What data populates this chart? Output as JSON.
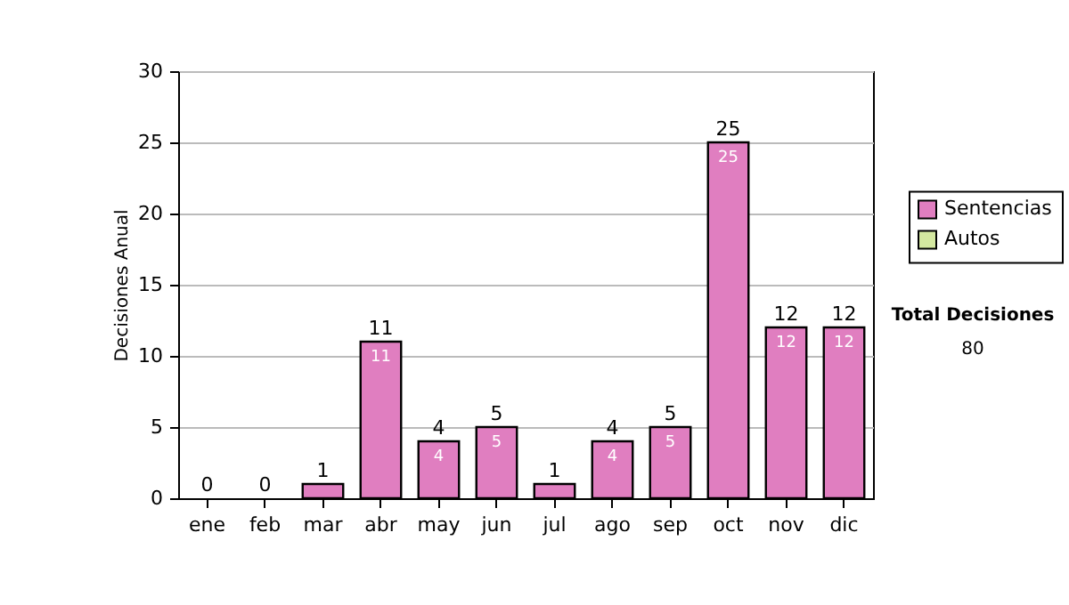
{
  "chart_data": {
    "type": "bar",
    "stacked": true,
    "ylabel": "Decisiones Anual",
    "categories": [
      "ene",
      "feb",
      "mar",
      "abr",
      "may",
      "jun",
      "jul",
      "ago",
      "sep",
      "oct",
      "nov",
      "dic"
    ],
    "series": [
      {
        "name": "Sentencias",
        "color": "#e07ec0",
        "values": [
          0,
          0,
          1,
          11,
          4,
          5,
          1,
          4,
          5,
          25,
          12,
          12
        ],
        "value_labels": [
          null,
          null,
          null,
          "11",
          "4",
          "5",
          null,
          "4",
          "5",
          "25",
          "12",
          "12"
        ]
      },
      {
        "name": "Autos",
        "color": "#d4e8a0",
        "values": [
          0,
          0,
          0,
          0,
          0,
          0,
          0,
          0,
          0,
          0,
          0,
          0
        ]
      }
    ],
    "totals": [
      "0",
      "0",
      "1",
      "11",
      "4",
      "5",
      "1",
      "4",
      "5",
      "25",
      "12",
      "12"
    ],
    "ylim": [
      0,
      30
    ],
    "yticks": [
      0,
      5,
      10,
      15,
      20,
      25,
      30
    ],
    "grid": "y",
    "legend": "right",
    "annotations": [
      "Total Decisiones",
      "80"
    ]
  }
}
